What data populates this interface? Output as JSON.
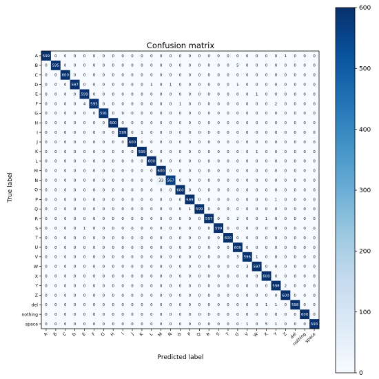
{
  "chart_data": {
    "type": "heatmap",
    "title": "Confusion matrix",
    "xlabel": "Predicted label",
    "ylabel": "True label",
    "labels": [
      "A",
      "B",
      "C",
      "D",
      "E",
      "F",
      "G",
      "H",
      "I",
      "J",
      "K",
      "L",
      "M",
      "N",
      "O",
      "P",
      "Q",
      "R",
      "S",
      "T",
      "U",
      "V",
      "W",
      "X",
      "Y",
      "Z",
      "del",
      "nothing",
      "space"
    ],
    "matrix": [
      [
        599,
        0,
        0,
        0,
        0,
        0,
        0,
        0,
        0,
        0,
        0,
        0,
        0,
        0,
        0,
        0,
        0,
        0,
        0,
        0,
        0,
        0,
        0,
        0,
        0,
        1,
        0,
        0,
        0
      ],
      [
        0,
        595,
        0,
        0,
        0,
        0,
        0,
        0,
        0,
        0,
        0,
        0,
        0,
        0,
        0,
        0,
        0,
        0,
        0,
        0,
        5,
        0,
        0,
        0,
        0,
        0,
        0,
        0,
        0
      ],
      [
        0,
        0,
        600,
        0,
        0,
        0,
        0,
        0,
        0,
        0,
        0,
        0,
        0,
        0,
        0,
        0,
        0,
        0,
        0,
        0,
        0,
        0,
        0,
        0,
        0,
        0,
        0,
        0,
        0
      ],
      [
        0,
        0,
        0,
        597,
        0,
        0,
        0,
        0,
        0,
        0,
        0,
        1,
        0,
        1,
        0,
        0,
        0,
        0,
        0,
        0,
        1,
        0,
        0,
        0,
        0,
        0,
        0,
        0,
        0
      ],
      [
        0,
        0,
        0,
        0,
        599,
        0,
        0,
        0,
        0,
        0,
        0,
        0,
        0,
        0,
        0,
        0,
        0,
        0,
        0,
        0,
        0,
        0,
        1,
        0,
        0,
        0,
        0,
        0,
        0
      ],
      [
        0,
        0,
        0,
        0,
        4,
        593,
        0,
        0,
        0,
        0,
        0,
        0,
        0,
        0,
        1,
        0,
        0,
        0,
        0,
        0,
        0,
        0,
        0,
        0,
        2,
        0,
        0,
        0,
        0
      ],
      [
        0,
        0,
        0,
        0,
        0,
        0,
        591,
        0,
        9,
        0,
        0,
        0,
        0,
        0,
        0,
        0,
        0,
        0,
        0,
        0,
        0,
        0,
        0,
        0,
        0,
        0,
        0,
        0,
        0
      ],
      [
        0,
        0,
        0,
        0,
        0,
        0,
        0,
        600,
        0,
        0,
        0,
        0,
        0,
        0,
        0,
        0,
        0,
        0,
        0,
        0,
        0,
        0,
        0,
        0,
        0,
        0,
        0,
        0,
        0
      ],
      [
        0,
        0,
        0,
        0,
        0,
        0,
        0,
        0,
        599,
        0,
        1,
        0,
        0,
        0,
        0,
        0,
        0,
        0,
        0,
        0,
        0,
        0,
        0,
        0,
        0,
        0,
        0,
        0,
        0
      ],
      [
        0,
        0,
        0,
        0,
        0,
        0,
        0,
        0,
        0,
        600,
        0,
        0,
        0,
        0,
        0,
        0,
        0,
        0,
        0,
        0,
        0,
        0,
        0,
        0,
        0,
        0,
        0,
        0,
        0
      ],
      [
        0,
        0,
        0,
        0,
        0,
        0,
        0,
        0,
        0,
        0,
        599,
        0,
        0,
        0,
        0,
        0,
        0,
        0,
        0,
        0,
        0,
        0,
        1,
        0,
        0,
        0,
        0,
        0,
        0
      ],
      [
        0,
        0,
        0,
        0,
        0,
        0,
        0,
        0,
        0,
        0,
        0,
        600,
        0,
        0,
        0,
        0,
        0,
        0,
        0,
        0,
        0,
        0,
        0,
        0,
        0,
        0,
        0,
        0,
        0
      ],
      [
        0,
        0,
        0,
        0,
        0,
        0,
        0,
        0,
        0,
        0,
        0,
        0,
        600,
        0,
        0,
        0,
        0,
        0,
        0,
        0,
        0,
        0,
        0,
        0,
        0,
        0,
        0,
        0,
        0
      ],
      [
        0,
        0,
        0,
        0,
        0,
        0,
        0,
        0,
        0,
        0,
        0,
        0,
        33,
        567,
        0,
        0,
        0,
        0,
        0,
        0,
        0,
        0,
        0,
        0,
        0,
        0,
        0,
        0,
        0
      ],
      [
        0,
        0,
        0,
        0,
        0,
        0,
        0,
        0,
        0,
        0,
        0,
        0,
        0,
        0,
        600,
        0,
        0,
        0,
        0,
        0,
        0,
        0,
        0,
        0,
        0,
        0,
        0,
        0,
        0
      ],
      [
        0,
        0,
        0,
        0,
        0,
        0,
        0,
        0,
        0,
        0,
        0,
        0,
        0,
        0,
        0,
        599,
        0,
        0,
        0,
        0,
        0,
        0,
        0,
        0,
        1,
        0,
        0,
        0,
        0
      ],
      [
        0,
        0,
        0,
        0,
        0,
        0,
        0,
        0,
        0,
        0,
        0,
        0,
        0,
        0,
        0,
        1,
        599,
        0,
        0,
        0,
        0,
        0,
        0,
        0,
        0,
        0,
        0,
        0,
        0
      ],
      [
        0,
        0,
        0,
        0,
        0,
        0,
        0,
        0,
        0,
        0,
        0,
        0,
        0,
        0,
        0,
        0,
        0,
        597,
        0,
        0,
        2,
        0,
        0,
        1,
        0,
        0,
        0,
        0,
        0
      ],
      [
        0,
        0,
        0,
        0,
        1,
        0,
        0,
        0,
        0,
        0,
        0,
        0,
        0,
        0,
        0,
        0,
        0,
        0,
        599,
        0,
        0,
        0,
        0,
        0,
        0,
        0,
        0,
        0,
        0
      ],
      [
        0,
        0,
        0,
        0,
        0,
        0,
        0,
        0,
        0,
        0,
        0,
        0,
        0,
        0,
        0,
        0,
        0,
        0,
        0,
        600,
        0,
        0,
        0,
        0,
        0,
        0,
        0,
        0,
        0
      ],
      [
        0,
        0,
        0,
        0,
        0,
        0,
        0,
        0,
        0,
        0,
        0,
        0,
        0,
        0,
        0,
        0,
        0,
        0,
        0,
        0,
        600,
        0,
        0,
        0,
        0,
        0,
        0,
        0,
        0
      ],
      [
        0,
        0,
        0,
        0,
        0,
        0,
        0,
        0,
        0,
        0,
        0,
        0,
        0,
        0,
        0,
        0,
        0,
        0,
        0,
        0,
        3,
        596,
        1,
        0,
        0,
        0,
        0,
        0,
        0
      ],
      [
        0,
        0,
        0,
        0,
        0,
        0,
        0,
        0,
        0,
        0,
        0,
        0,
        0,
        0,
        0,
        0,
        0,
        0,
        0,
        0,
        0,
        3,
        597,
        0,
        0,
        0,
        0,
        0,
        0
      ],
      [
        0,
        0,
        0,
        0,
        0,
        0,
        0,
        0,
        0,
        0,
        0,
        0,
        0,
        0,
        0,
        0,
        0,
        0,
        0,
        0,
        0,
        0,
        0,
        600,
        0,
        0,
        0,
        0,
        0
      ],
      [
        0,
        0,
        0,
        0,
        0,
        0,
        0,
        0,
        0,
        0,
        0,
        0,
        0,
        0,
        0,
        0,
        0,
        0,
        0,
        0,
        0,
        0,
        0,
        0,
        598,
        2,
        0,
        0,
        0
      ],
      [
        0,
        0,
        0,
        0,
        0,
        0,
        0,
        0,
        0,
        0,
        0,
        0,
        0,
        0,
        0,
        0,
        0,
        0,
        0,
        0,
        0,
        0,
        0,
        0,
        0,
        600,
        0,
        0,
        0
      ],
      [
        0,
        0,
        0,
        0,
        0,
        0,
        0,
        0,
        0,
        0,
        0,
        0,
        0,
        0,
        0,
        0,
        0,
        0,
        0,
        0,
        0,
        0,
        0,
        1,
        1,
        0,
        598,
        0,
        0
      ],
      [
        0,
        0,
        0,
        0,
        0,
        0,
        0,
        0,
        0,
        0,
        0,
        0,
        0,
        0,
        0,
        0,
        0,
        0,
        0,
        0,
        0,
        0,
        0,
        0,
        0,
        0,
        0,
        600,
        0
      ],
      [
        0,
        0,
        0,
        0,
        0,
        0,
        0,
        0,
        0,
        0,
        0,
        0,
        0,
        0,
        0,
        0,
        0,
        0,
        0,
        0,
        0,
        1,
        0,
        5,
        1,
        0,
        0,
        0,
        593
      ]
    ],
    "colorbar": {
      "colormap": "Blues",
      "range": [
        0,
        600
      ],
      "ticks": [
        0,
        100,
        200,
        300,
        400,
        500,
        600
      ]
    },
    "grid": false
  },
  "colors": {
    "low": "#f7fbff",
    "high": "#08306b",
    "text_dark": "#000000",
    "text_light": "#ffffff"
  }
}
